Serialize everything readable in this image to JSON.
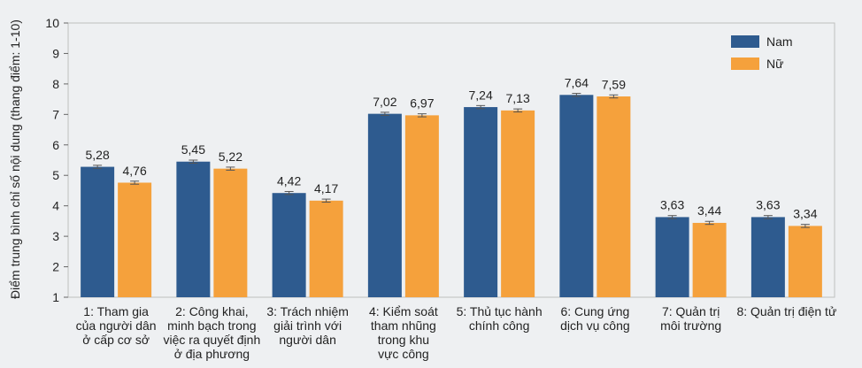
{
  "chart_data": {
    "type": "bar",
    "ylabel": "Điểm trung bình chỉ số nội dung (thang điểm: 1-10)",
    "ylim": [
      1,
      10
    ],
    "yticks": [
      "1",
      "2",
      "3",
      "4",
      "5",
      "6",
      "7",
      "8",
      "9",
      "10"
    ],
    "grid": false,
    "legend_position": "top-right",
    "error_bars": true,
    "categories": [
      [
        "1: Tham gia",
        "của người dân",
        "ở cấp cơ sở"
      ],
      [
        "2: Công khai,",
        "minh bạch trong",
        "việc ra quyết định",
        "ở địa phương"
      ],
      [
        "3: Trách nhiệm",
        "giải trình với",
        "người dân"
      ],
      [
        "4: Kiểm soát",
        "tham nhũng",
        "trong khu",
        "vực công"
      ],
      [
        "5: Thủ tục hành",
        "chính công"
      ],
      [
        "6: Cung ứng",
        "dịch vụ công"
      ],
      [
        "7: Quản trị",
        "môi trường"
      ],
      [
        "8: Quản trị điện tử"
      ]
    ],
    "series": [
      {
        "name": "Nam",
        "color": "#2e5b8f",
        "values": [
          5.28,
          5.45,
          4.42,
          7.02,
          7.24,
          7.64,
          3.63,
          3.63
        ],
        "labels": [
          "5,28",
          "5,45",
          "4,42",
          "7,02",
          "7,24",
          "7,64",
          "3,63",
          "3,63"
        ]
      },
      {
        "name": "Nữ",
        "color": "#f5a13c",
        "values": [
          4.76,
          5.22,
          4.17,
          6.97,
          7.13,
          7.59,
          3.44,
          3.34
        ],
        "labels": [
          "4,76",
          "5,22",
          "4,17",
          "6,97",
          "7,13",
          "7,59",
          "3,44",
          "3,34"
        ]
      }
    ]
  }
}
